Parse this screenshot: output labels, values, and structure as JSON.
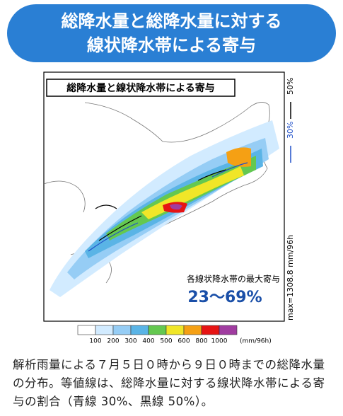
{
  "header": {
    "title_lines": [
      "総降水量と総降水量に対する",
      "線状降水帯による寄与"
    ]
  },
  "figure": {
    "inset_title": "総降水量と線状降水帯による寄与",
    "contour_legend": [
      {
        "label": "50%",
        "color": "#000000"
      },
      {
        "label": "30%",
        "color": "#1f4fc8"
      }
    ],
    "max_label": "max=1308.8 mm/96h",
    "annotation_label": "各線状降水帯の最大寄与",
    "annotation_value": "23～69%",
    "colorbar": {
      "labels": [
        "100",
        "200",
        "300",
        "400",
        "500",
        "600",
        "800",
        "1000"
      ],
      "colors": [
        "#ffffff",
        "#d2ebff",
        "#96cdf5",
        "#5ab4e6",
        "#64c850",
        "#f0e628",
        "#f5a014",
        "#e61414",
        "#a03ca0"
      ],
      "unit": "(mm/96h)"
    }
  },
  "caption": "解析雨量による７月５日０時から９日０時までの総降水量の分布。等値線は、総降水量に対する線状降水帯による寄与の割合（青線 30%、黒線 50%）。"
}
